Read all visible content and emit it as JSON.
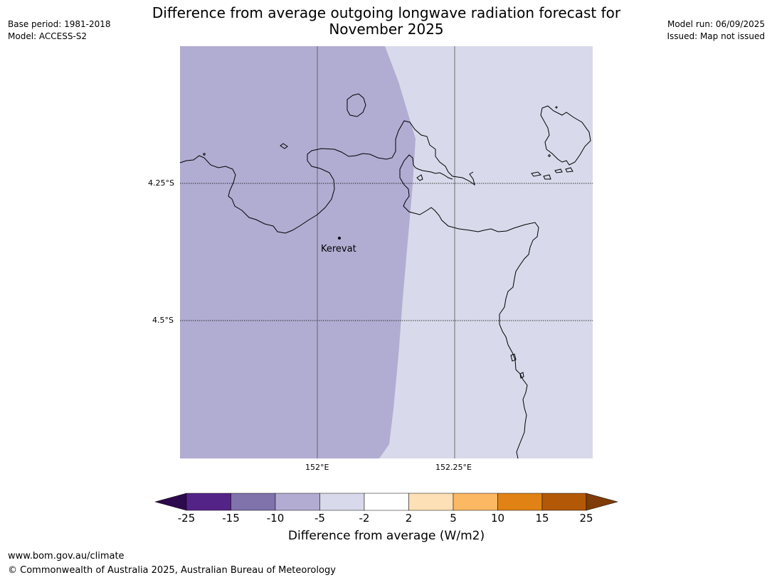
{
  "title_line1": "Difference from average outgoing longwave radiation forecast for",
  "title_line2": "November 2025",
  "header_left": {
    "base_period": "Base period: 1981-2018",
    "model": "Model: ACCESS-S2"
  },
  "header_right": {
    "model_run": "Model run: 06/09/2025",
    "issued": "Issued: Map not issued"
  },
  "map": {
    "lat_labels": [
      "4.25°S",
      "4.5°S"
    ],
    "lon_labels": [
      "152°E",
      "152.25°E"
    ],
    "place": "Kerevat",
    "region_colors": {
      "west": "#b1acd2",
      "east": "#d8d9ea"
    },
    "coastline_color": "#000000"
  },
  "colorbar": {
    "ticks": [
      "-25",
      "-15",
      "-10",
      "-5",
      "-2",
      "2",
      "5",
      "10",
      "15",
      "25"
    ],
    "colors": [
      "#2d0a4e",
      "#542388",
      "#8073ac",
      "#b2abd2",
      "#d8daeb",
      "#ffffff",
      "#fee0b6",
      "#fdb863",
      "#e08214",
      "#b35806",
      "#7f3b08"
    ],
    "label": "Difference from average (W/m2)"
  },
  "footer": {
    "url": "www.bom.gov.au/climate",
    "copyright": "© Commonwealth of Australia 2025, Australian Bureau of Meteorology"
  }
}
